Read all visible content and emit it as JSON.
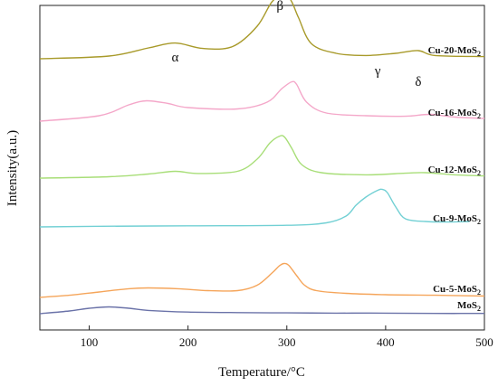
{
  "chart_data": {
    "type": "line",
    "xlabel": "Temperature/°C",
    "ylabel": "Intensity(a.u.)",
    "xlim": [
      50,
      500
    ],
    "x_ticks": [
      100,
      200,
      300,
      400,
      500
    ],
    "y_ticks_shown": false,
    "grid": false,
    "legend": "labels at right end of each curve",
    "peak_labels": [
      {
        "text": "α",
        "x": 187,
        "level": 0.93
      },
      {
        "text": "β",
        "x": 293,
        "level": 1.12
      },
      {
        "text": "γ",
        "x": 392,
        "level": 0.88
      },
      {
        "text": "δ",
        "x": 433,
        "level": 0.84
      }
    ],
    "series": [
      {
        "name": "MoS2",
        "label_main": "MoS",
        "label_sub": "2",
        "color": "#6a72a8",
        "baseline": 0.0,
        "x": [
          50,
          80,
          100,
          120,
          140,
          160,
          200,
          250,
          300,
          350,
          400,
          450,
          500
        ],
        "y": [
          0.0,
          0.01,
          0.02,
          0.025,
          0.02,
          0.012,
          0.006,
          0.004,
          0.003,
          0.002,
          0.002,
          0.001,
          0.001
        ]
      },
      {
        "name": "Cu-5-MoS2",
        "label_main": "Cu-5-MoS",
        "label_sub": "2",
        "color": "#f5a55a",
        "baseline": 0.06,
        "x": [
          50,
          80,
          110,
          140,
          160,
          190,
          220,
          250,
          270,
          285,
          292,
          297,
          302,
          310,
          318,
          330,
          360,
          400,
          450,
          500
        ],
        "y": [
          0.0,
          0.008,
          0.02,
          0.032,
          0.035,
          0.032,
          0.025,
          0.025,
          0.045,
          0.09,
          0.115,
          0.125,
          0.118,
          0.08,
          0.045,
          0.025,
          0.015,
          0.01,
          0.008,
          0.005
        ]
      },
      {
        "name": "Cu-9-MoS2",
        "label_main": "Cu-9-MoS",
        "label_sub": "2",
        "color": "#72d0d4",
        "baseline": 0.32,
        "x": [
          50,
          100,
          200,
          300,
          340,
          360,
          370,
          380,
          392,
          397,
          402,
          410,
          420,
          440,
          460,
          485
        ],
        "y": [
          0.0,
          0.002,
          0.004,
          0.006,
          0.015,
          0.04,
          0.08,
          0.11,
          0.135,
          0.138,
          0.125,
          0.075,
          0.03,
          0.02,
          0.018,
          0.02
        ]
      },
      {
        "name": "Cu-12-MoS2",
        "label_main": "Cu-12-MoS",
        "label_sub": "2",
        "color": "#a8de78",
        "baseline": 0.5,
        "x": [
          50,
          120,
          160,
          187,
          210,
          250,
          270,
          283,
          293,
          298,
          305,
          315,
          335,
          380,
          420,
          440,
          470,
          500
        ],
        "y": [
          0.0,
          0.005,
          0.015,
          0.025,
          0.017,
          0.025,
          0.07,
          0.13,
          0.155,
          0.15,
          0.11,
          0.05,
          0.02,
          0.012,
          0.018,
          0.02,
          0.012,
          0.008
        ]
      },
      {
        "name": "Cu-16-MoS2",
        "label_main": "Cu-16-MoS",
        "label_sub": "2",
        "color": "#f4a7c9",
        "baseline": 0.71,
        "x": [
          50,
          110,
          140,
          158,
          180,
          200,
          250,
          280,
          295,
          305,
          310,
          320,
          340,
          380,
          420,
          445,
          470,
          500
        ],
        "y": [
          0.0,
          0.02,
          0.06,
          0.075,
          0.065,
          0.05,
          0.045,
          0.07,
          0.12,
          0.145,
          0.135,
          0.07,
          0.03,
          0.02,
          0.018,
          0.025,
          0.015,
          0.01
        ]
      },
      {
        "name": "Cu-20-MoS2",
        "label_main": "Cu-20-MoS",
        "label_sub": "2",
        "color": "#a89a2a",
        "baseline": 0.94,
        "x": [
          50,
          120,
          160,
          187,
          215,
          245,
          270,
          285,
          298,
          305,
          312,
          325,
          350,
          380,
          410,
          433,
          450,
          500
        ],
        "y": [
          0.0,
          0.01,
          0.04,
          0.058,
          0.038,
          0.045,
          0.12,
          0.21,
          0.24,
          0.21,
          0.15,
          0.055,
          0.02,
          0.012,
          0.02,
          0.03,
          0.012,
          0.008
        ]
      }
    ]
  }
}
